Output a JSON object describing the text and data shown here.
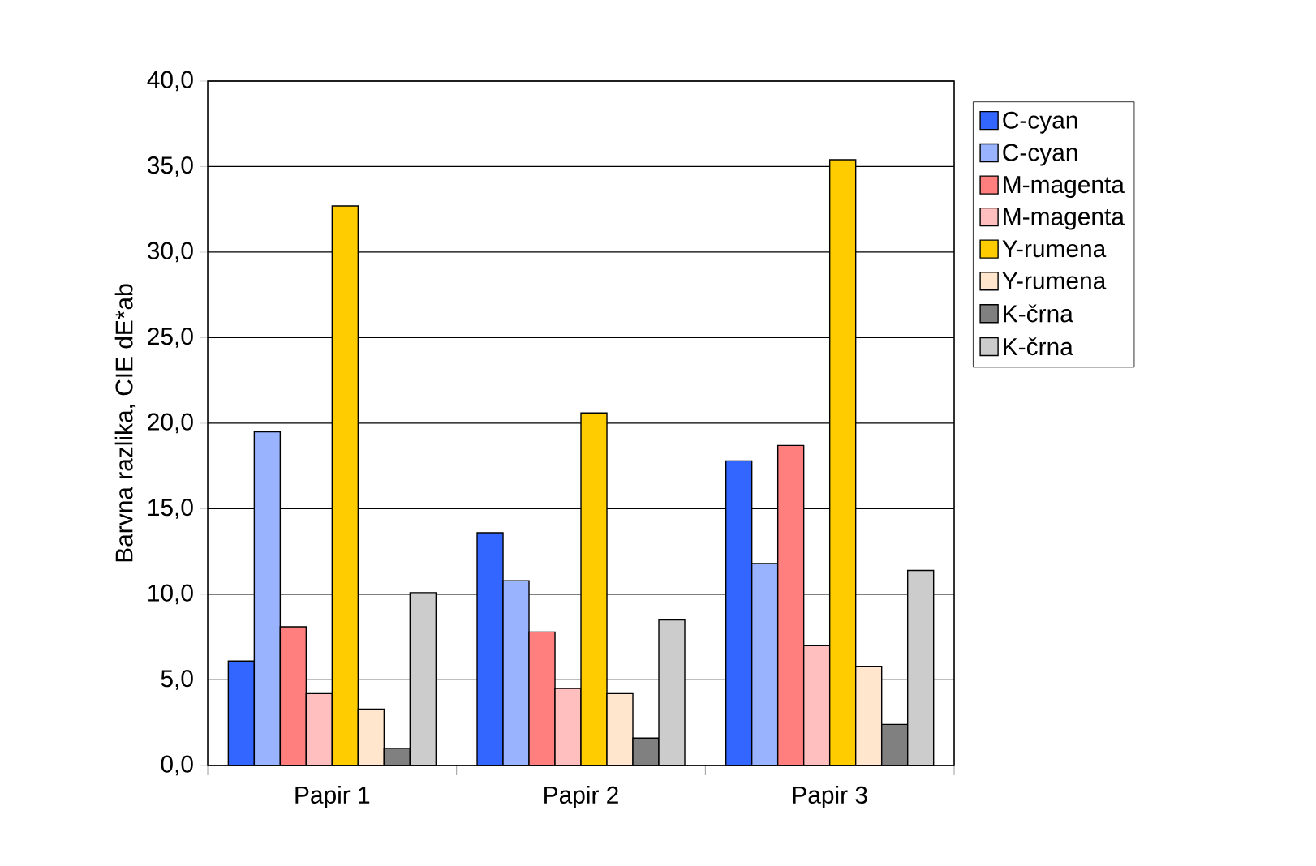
{
  "chart_data": {
    "type": "bar",
    "ylabel": "Barvna razlika, CIE dE*ab",
    "categories": [
      "Papir 1",
      "Papir 2",
      "Papir 3"
    ],
    "series": [
      {
        "name": "C-cyan",
        "color": "#3366ff",
        "values": [
          6.1,
          13.6,
          17.8
        ]
      },
      {
        "name": "C-cyan",
        "color": "#99b3ff",
        "values": [
          19.5,
          10.8,
          11.8
        ]
      },
      {
        "name": "M-magenta",
        "color": "#ff7f7f",
        "values": [
          8.1,
          7.8,
          18.7
        ]
      },
      {
        "name": "M-magenta",
        "color": "#ffbfbf",
        "values": [
          4.2,
          4.5,
          7.0
        ]
      },
      {
        "name": "Y-rumena",
        "color": "#ffcc00",
        "values": [
          32.7,
          20.6,
          35.4
        ]
      },
      {
        "name": "Y-rumena",
        "color": "#ffe6cc",
        "values": [
          3.3,
          4.2,
          5.8
        ]
      },
      {
        "name": "K-črna",
        "color": "#808080",
        "values": [
          1.0,
          1.6,
          2.4
        ]
      },
      {
        "name": "K-črna",
        "color": "#cccccc",
        "values": [
          10.1,
          8.5,
          11.4
        ]
      }
    ],
    "ylim": [
      0,
      40
    ],
    "yticks": [
      {
        "value": 0,
        "label": "0,0"
      },
      {
        "value": 5,
        "label": "5,0"
      },
      {
        "value": 10,
        "label": "10,0"
      },
      {
        "value": 15,
        "label": "15,0"
      },
      {
        "value": 20,
        "label": "20,0"
      },
      {
        "value": 25,
        "label": "25,0"
      },
      {
        "value": 30,
        "label": "30,0"
      },
      {
        "value": 35,
        "label": "35,0"
      },
      {
        "value": 40,
        "label": "40,0"
      }
    ],
    "grid": "y",
    "legend": "right"
  }
}
